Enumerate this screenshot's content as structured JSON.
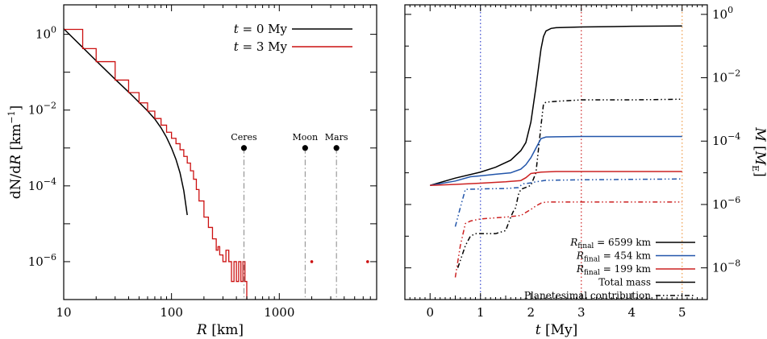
{
  "chart_data": [
    {
      "type": "line",
      "xscale": "log",
      "yscale": "log",
      "xlim": [
        10,
        8000
      ],
      "ylim": [
        1e-07,
        6
      ],
      "xlabel_parts": {
        "var": "R",
        "unit": " [km]"
      },
      "ylabel_parts": {
        "var1": "dN",
        "slash": "/d",
        "var2": "R",
        "unit": " [km",
        "exp": "−1",
        "close": "]"
      },
      "xticks": [
        {
          "v": 10,
          "label": "10"
        },
        {
          "v": 100,
          "label": "100"
        },
        {
          "v": 1000,
          "label": "1000"
        }
      ],
      "yticks": [
        {
          "v": 1,
          "base": "10",
          "exp": "0"
        },
        {
          "v": 0.01,
          "base": "10",
          "exp": "−2"
        },
        {
          "v": 0.0001,
          "base": "10",
          "exp": "−4"
        },
        {
          "v": 1e-06,
          "base": "10",
          "exp": "−6"
        }
      ],
      "legend_position": "top-right",
      "series": [
        {
          "name": "t = 0 My",
          "legend": {
            "var": "t",
            "rest": " = 0 My"
          },
          "color": "#000000",
          "x": [
            10,
            15,
            20,
            30,
            40,
            50,
            60,
            70,
            80,
            90,
            100,
            110,
            120,
            130,
            140
          ],
          "y": [
            1.4,
            0.45,
            0.2,
            0.065,
            0.03,
            0.016,
            0.0095,
            0.0058,
            0.0034,
            0.0019,
            0.001,
            0.0005,
            0.00022,
            7.5e-05,
            1.7e-05
          ]
        },
        {
          "name": "t = 3 My",
          "legend": {
            "var": "t",
            "rest": " = 3 My"
          },
          "color": "#cc1111",
          "step": true,
          "x": [
            10,
            15,
            20,
            30,
            40,
            50,
            60,
            70,
            80,
            90,
            100,
            110,
            120,
            130,
            140,
            150,
            160,
            170,
            180,
            200,
            220,
            240,
            260,
            270,
            280,
            300,
            320,
            340,
            360,
            380,
            400,
            420,
            440,
            460,
            480
          ],
          "y": [
            1.35,
            0.42,
            0.19,
            0.062,
            0.029,
            0.0155,
            0.0094,
            0.006,
            0.004,
            0.0026,
            0.0018,
            0.0013,
            0.0009,
            0.0006,
            0.0004,
            0.00025,
            0.00015,
            8e-05,
            4e-05,
            1.5e-05,
            8e-06,
            4e-06,
            2e-06,
            2.5e-06,
            1.5e-06,
            1e-06,
            2e-06,
            1e-06,
            3e-07,
            1e-06,
            3e-07,
            1e-06,
            3e-07,
            1e-06,
            3e-07
          ]
        }
      ],
      "points": [
        {
          "x": 2000,
          "y": 1e-06,
          "color": "#cc1111"
        },
        {
          "x": 6599,
          "y": 1e-06,
          "color": "#cc1111"
        }
      ],
      "reference_bodies": [
        {
          "label": "Ceres",
          "x": 470,
          "ytop": 0.001
        },
        {
          "label": "Moon",
          "x": 1737,
          "ytop": 0.001
        },
        {
          "label": "Mars",
          "x": 3390,
          "ytop": 0.001
        }
      ]
    },
    {
      "type": "line",
      "xscale": "linear",
      "yscale": "log",
      "xlim": [
        -0.5,
        5.5
      ],
      "ylim": [
        1e-09,
        2
      ],
      "xlabel_parts": {
        "var": "t",
        "unit": " [My]"
      },
      "ylabel_parts": {
        "var": "M",
        "open": " [",
        "unit_var": "M",
        "unit_sub": "E",
        "close": "]"
      },
      "xticks": [
        {
          "v": 0,
          "label": "0"
        },
        {
          "v": 1,
          "label": "1"
        },
        {
          "v": 2,
          "label": "2"
        },
        {
          "v": 3,
          "label": "3"
        },
        {
          "v": 4,
          "label": "4"
        },
        {
          "v": 5,
          "label": "5"
        }
      ],
      "yticks": [
        {
          "v": 1,
          "base": "10",
          "exp": "0"
        },
        {
          "v": 0.01,
          "base": "10",
          "exp": "−2"
        },
        {
          "v": 0.0001,
          "base": "10",
          "exp": "−4"
        },
        {
          "v": 1e-06,
          "base": "10",
          "exp": "−6"
        },
        {
          "v": 1e-08,
          "base": "10",
          "exp": "−8"
        }
      ],
      "vlines": [
        {
          "x": 1,
          "color": "#3344cc"
        },
        {
          "x": 3,
          "color": "#cc2222"
        },
        {
          "x": 5,
          "color": "#ee9944"
        }
      ],
      "legend_position": "bottom-right",
      "legend_entries": [
        {
          "kind": "color",
          "color": "#000000",
          "rvar": "R",
          "sub": "final",
          "rest": " = 6599 km"
        },
        {
          "kind": "color",
          "color": "#2255aa",
          "rvar": "R",
          "sub": "final",
          "rest": " =   454 km"
        },
        {
          "kind": "color",
          "color": "#cc2222",
          "rvar": "R",
          "sub": "final",
          "rest": " =   199 km"
        },
        {
          "kind": "style",
          "dash": "",
          "text": "Total mass"
        },
        {
          "kind": "style",
          "dash": "6,3,1.5,3,1.5,3",
          "text": "Planetesimal contribution"
        }
      ],
      "series": [
        {
          "name": "Rfinal = 6599 km, total mass",
          "color": "#000000",
          "dash": "",
          "x": [
            0,
            0.5,
            1.0,
            1.3,
            1.6,
            1.8,
            1.9,
            2.0,
            2.1,
            2.2,
            2.25,
            2.3,
            2.4,
            2.5,
            3,
            4,
            5
          ],
          "y": [
            4e-06,
            6.8e-06,
            1.05e-05,
            1.5e-05,
            2.5e-05,
            5e-05,
            9e-05,
            0.0004,
            0.005,
            0.08,
            0.2,
            0.3,
            0.36,
            0.38,
            0.4,
            0.42,
            0.43
          ]
        },
        {
          "name": "Rfinal = 6599 km, planetesimal contribution",
          "color": "#000000",
          "dash": "6,3,1.5,3,1.5,3",
          "x": [
            0.55,
            0.7,
            0.8,
            0.9,
            1.0,
            1.3,
            1.5,
            1.6,
            1.65,
            1.7,
            1.75,
            1.8,
            2.0,
            2.1,
            2.2,
            2.25,
            2.3,
            2.5,
            3,
            4,
            5
          ],
          "y": [
            1e-08,
            5e-08,
            1e-07,
            1.2e-07,
            1.2e-07,
            1.2e-07,
            1.5e-07,
            4e-07,
            6e-07,
            8e-07,
            2e-06,
            3e-06,
            4e-06,
            1e-05,
            0.0003,
            0.0015,
            0.0017,
            0.0018,
            0.002,
            0.002,
            0.0021
          ]
        },
        {
          "name": "Rfinal = 454 km, total mass",
          "color": "#2255aa",
          "dash": "",
          "x": [
            0,
            0.5,
            0.8,
            1.0,
            1.3,
            1.6,
            1.8,
            1.9,
            2.0,
            2.1,
            2.2,
            2.3,
            2.5,
            3,
            4,
            5
          ],
          "y": [
            4e-06,
            5.5e-06,
            7.5e-06,
            8e-06,
            9e-06,
            1e-05,
            1.3e-05,
            1.8e-05,
            3e-05,
            6e-05,
            0.00012,
            0.000135,
            0.000137,
            0.00014,
            0.00014,
            0.00014
          ]
        },
        {
          "name": "Rfinal = 454 km, planetesimal contribution",
          "color": "#2255aa",
          "dash": "6,3,1.5,3,1.5,3",
          "x": [
            0.5,
            0.6,
            0.7,
            1.0,
            1.5,
            1.75,
            1.8,
            1.85,
            2.0,
            2.1,
            2.2,
            2.3,
            3,
            4,
            5
          ],
          "y": [
            2e-07,
            8e-07,
            3e-06,
            3.1e-06,
            3.2e-06,
            3.4e-06,
            4e-06,
            4.5e-06,
            4.8e-06,
            5.2e-06,
            5.5e-06,
            5.8e-06,
            6e-06,
            6.2e-06,
            6.4e-06
          ]
        },
        {
          "name": "Rfinal = 199 km, total mass",
          "color": "#cc2222",
          "dash": "",
          "x": [
            0,
            0.5,
            1.0,
            1.5,
            1.8,
            1.9,
            2.0,
            2.2,
            2.5,
            3,
            4,
            5
          ],
          "y": [
            4e-06,
            4.3e-06,
            4.7e-06,
            5.2e-06,
            5.7e-06,
            7e-06,
            9.5e-06,
            1.05e-05,
            1.1e-05,
            1.1e-05,
            1.1e-05,
            1.1e-05
          ]
        },
        {
          "name": "Rfinal = 199 km, planetesimal contribution",
          "color": "#cc2222",
          "dash": "6,3,1.5,3,1.5,3",
          "x": [
            0.5,
            0.6,
            0.7,
            0.8,
            1.0,
            1.5,
            1.8,
            1.85,
            2.0,
            2.1,
            2.2,
            2.3,
            3,
            4,
            5
          ],
          "y": [
            5e-09,
            5e-08,
            2.5e-07,
            3e-07,
            3.5e-07,
            4e-07,
            4.5e-07,
            5e-07,
            7e-07,
            9e-07,
            1.1e-06,
            1.2e-06,
            1.2e-06,
            1.2e-06,
            1.2e-06
          ]
        }
      ]
    }
  ]
}
